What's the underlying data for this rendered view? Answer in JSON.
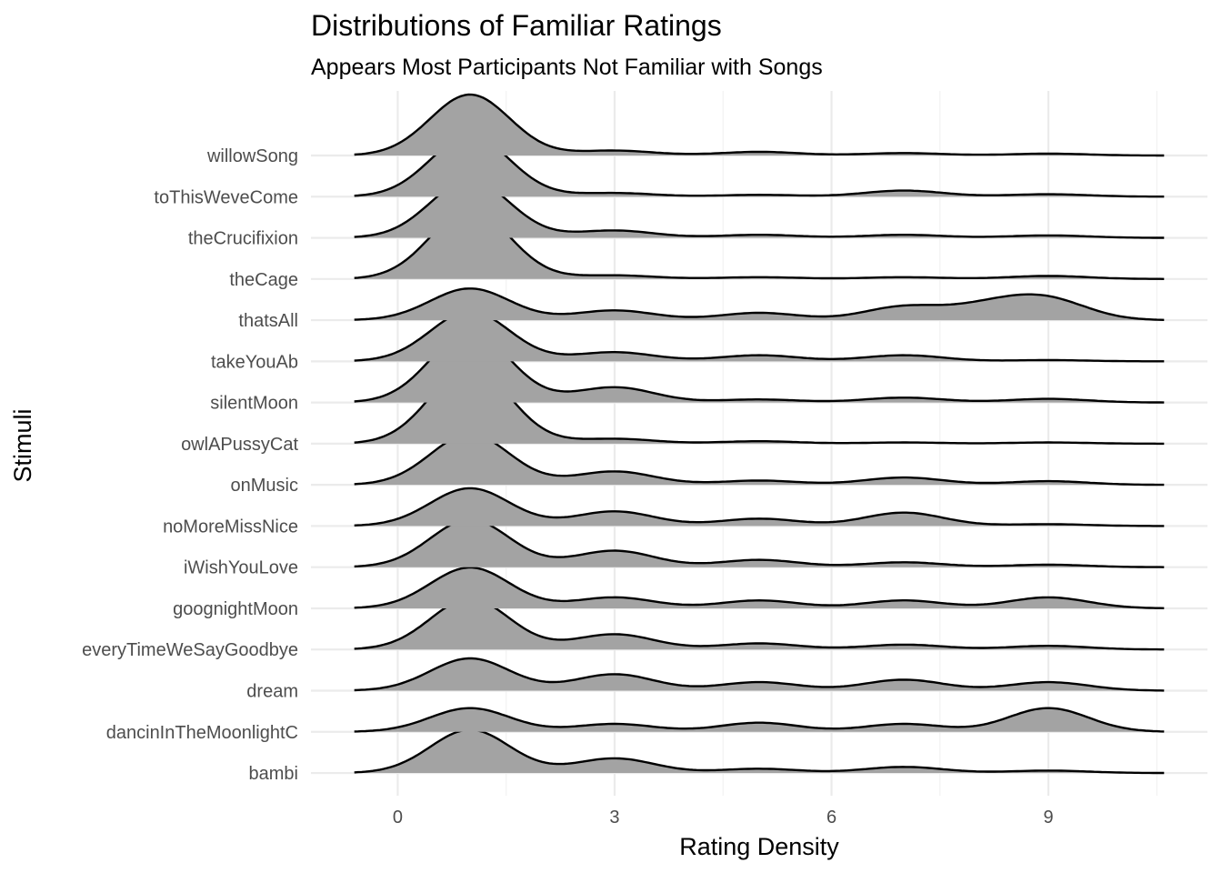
{
  "chart_data": {
    "type": "ridgeline",
    "title": "Distributions of Familiar Ratings",
    "subtitle": "Appears Most Participants Not Familiar with Songs",
    "xlabel": "Rating Density",
    "ylabel": "Stimuli",
    "x_ticks": [
      0,
      3,
      6,
      9
    ],
    "xlim": [
      -1.2,
      11.2
    ],
    "density_range": [
      -0.6,
      10.6
    ],
    "grid": true,
    "fill_color": "#a3a3a3",
    "line_color": "#000000",
    "series": [
      {
        "name": "willowSong",
        "peaks": [
          [
            1,
            1.0
          ],
          [
            3,
            0.08
          ],
          [
            5,
            0.06
          ],
          [
            7,
            0.04
          ],
          [
            9,
            0.03
          ]
        ]
      },
      {
        "name": "toThisWeveCome",
        "peaks": [
          [
            1,
            1.0
          ],
          [
            3,
            0.06
          ],
          [
            5,
            0.03
          ],
          [
            7,
            0.1
          ],
          [
            9,
            0.04
          ]
        ]
      },
      {
        "name": "theCrucifixion",
        "peaks": [
          [
            1,
            0.95
          ],
          [
            3,
            0.12
          ],
          [
            5,
            0.05
          ],
          [
            7,
            0.05
          ],
          [
            9,
            0.04
          ]
        ]
      },
      {
        "name": "theCage",
        "peaks": [
          [
            1,
            1.14
          ],
          [
            3,
            0.06
          ],
          [
            5,
            0.03
          ],
          [
            7,
            0.03
          ],
          [
            9,
            0.05
          ]
        ]
      },
      {
        "name": "thatsAll",
        "peaks": [
          [
            1,
            0.52
          ],
          [
            3,
            0.16
          ],
          [
            5,
            0.12
          ],
          [
            7,
            0.22
          ],
          [
            8.2,
            0.22
          ],
          [
            9,
            0.32
          ]
        ]
      },
      {
        "name": "takeYouAb",
        "peaks": [
          [
            1,
            0.82
          ],
          [
            3,
            0.15
          ],
          [
            5,
            0.1
          ],
          [
            7,
            0.1
          ],
          [
            9,
            0.02
          ]
        ]
      },
      {
        "name": "silentMoon",
        "peaks": [
          [
            1,
            1.16
          ],
          [
            3,
            0.25
          ],
          [
            5,
            0.05
          ],
          [
            7,
            0.08
          ],
          [
            9,
            0.06
          ]
        ]
      },
      {
        "name": "owlAPussyCat",
        "peaks": [
          [
            1,
            1.26
          ],
          [
            3,
            0.08
          ],
          [
            5,
            0.04
          ],
          [
            7,
            0.02
          ],
          [
            9,
            0.02
          ]
        ]
      },
      {
        "name": "onMusic",
        "peaks": [
          [
            1,
            0.83
          ],
          [
            3,
            0.22
          ],
          [
            5,
            0.07
          ],
          [
            7,
            0.12
          ],
          [
            9,
            0.06
          ]
        ]
      },
      {
        "name": "noMoreMissNice",
        "peaks": [
          [
            1,
            0.62
          ],
          [
            3,
            0.24
          ],
          [
            5,
            0.12
          ],
          [
            7,
            0.22
          ],
          [
            9,
            0.03
          ]
        ]
      },
      {
        "name": "iWishYouLove",
        "peaks": [
          [
            1,
            0.78
          ],
          [
            3,
            0.27
          ],
          [
            5,
            0.12
          ],
          [
            7,
            0.08
          ],
          [
            9,
            0.04
          ]
        ]
      },
      {
        "name": "goognightMoon",
        "peaks": [
          [
            1,
            0.67
          ],
          [
            3,
            0.18
          ],
          [
            5,
            0.13
          ],
          [
            7,
            0.13
          ],
          [
            9,
            0.18
          ]
        ]
      },
      {
        "name": "everyTimeWeSayGoodbye",
        "peaks": [
          [
            1,
            0.83
          ],
          [
            3,
            0.25
          ],
          [
            5,
            0.1
          ],
          [
            7,
            0.08
          ],
          [
            9,
            0.06
          ]
        ]
      },
      {
        "name": "dream",
        "peaks": [
          [
            1,
            0.53
          ],
          [
            3,
            0.27
          ],
          [
            5,
            0.14
          ],
          [
            7,
            0.18
          ],
          [
            9,
            0.14
          ]
        ]
      },
      {
        "name": "dancinInTheMoonlightC",
        "peaks": [
          [
            1,
            0.39
          ],
          [
            3,
            0.13
          ],
          [
            5,
            0.15
          ],
          [
            7,
            0.13
          ],
          [
            9,
            0.39
          ]
        ]
      },
      {
        "name": "bambi",
        "peaks": [
          [
            1,
            0.71
          ],
          [
            3,
            0.24
          ],
          [
            5,
            0.07
          ],
          [
            7,
            0.1
          ],
          [
            9,
            0.04
          ]
        ]
      }
    ]
  }
}
